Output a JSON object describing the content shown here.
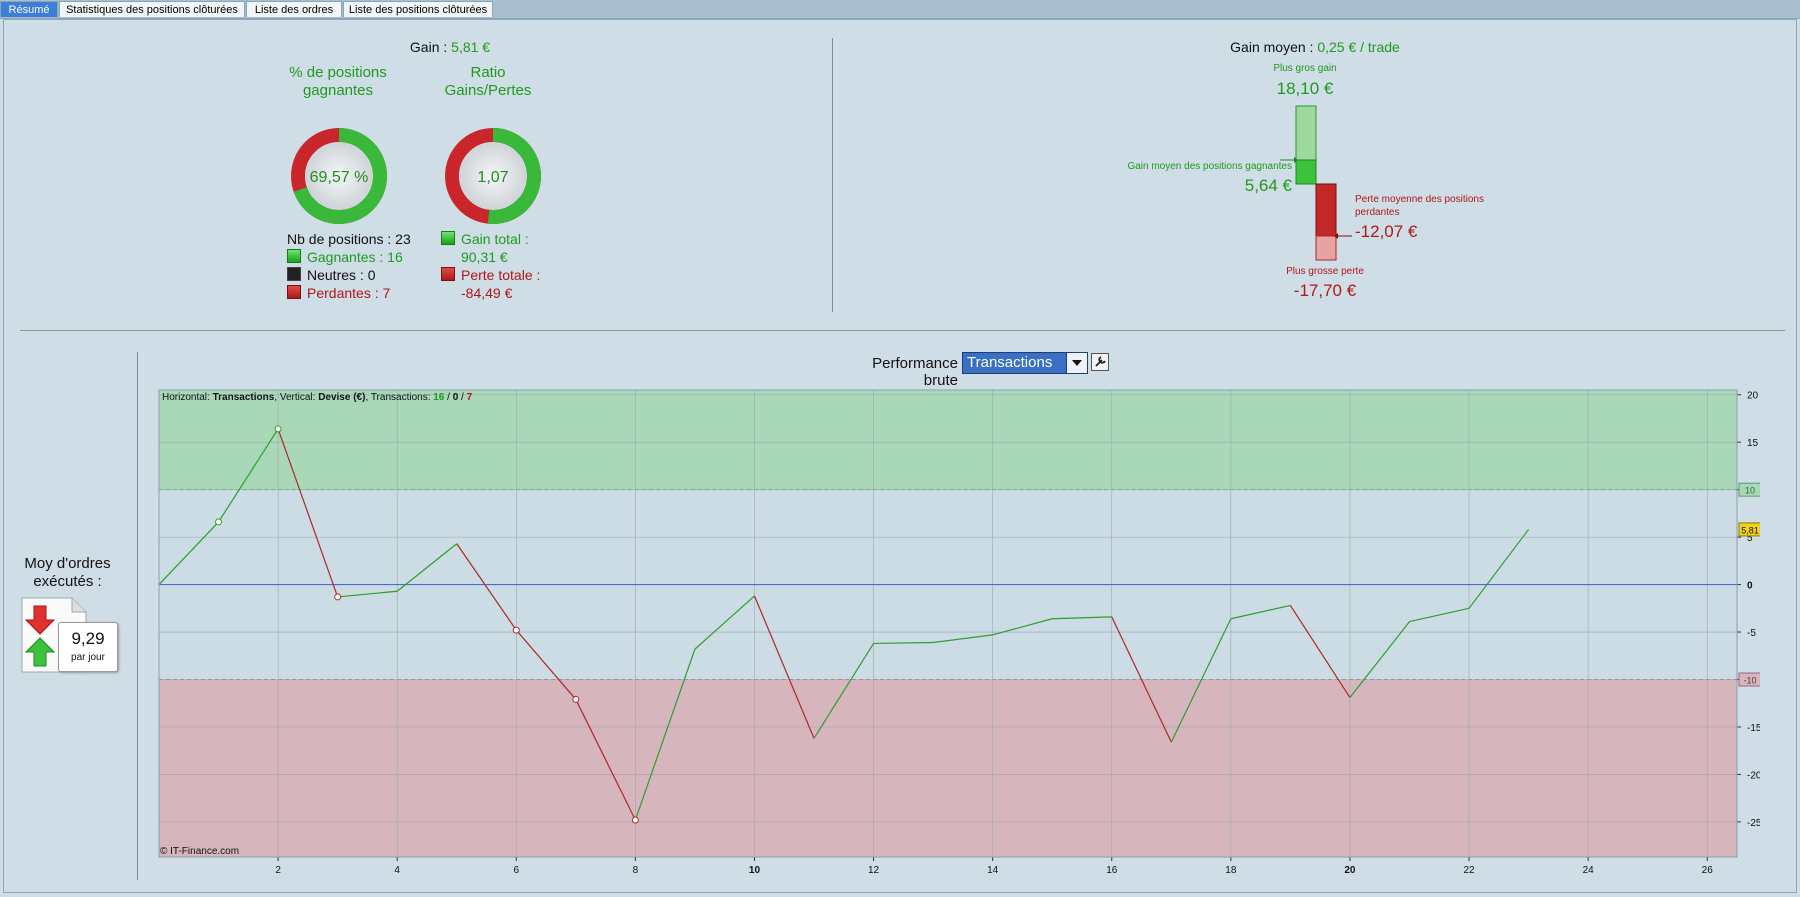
{
  "tabs": [
    {
      "label": "Résumé",
      "active": true
    },
    {
      "label": "Statistiques des positions clôturées"
    },
    {
      "label": "Liste des ordres"
    },
    {
      "label": "Liste des positions clôturées"
    }
  ],
  "summary": {
    "gain_label": "Gain :",
    "gain_value": "5,81 €",
    "pct_title": "% de positions gagnantes",
    "pct_value": "69,57 %",
    "pct_fraction": 0.6957,
    "ratio_title": "Ratio Gains/Pertes",
    "ratio_value": "1,07",
    "ratio_fraction": 0.5166,
    "nb_positions": "Nb de positions : 23",
    "gagnantes": "Gagnantes : 16",
    "neutres": "Neutres : 0",
    "perdantes": "Perdantes : 7",
    "gain_total_label": "Gain total :",
    "gain_total_value": "90,31 €",
    "perte_totale_label": "Perte totale :",
    "perte_totale_value": "-84,49 €"
  },
  "gain_moyen": {
    "label": "Gain moyen :",
    "value": "0,25 € / trade",
    "plus_gros_gain_label": "Plus gros gain",
    "plus_gros_gain_value": "18,10 €",
    "gain_moyen_gagnantes_label": "Gain moyen des positions gagnantes",
    "gain_moyen_gagnantes_value": "5,64 €",
    "perte_moyenne_label_1": "Perte moyenne des positions",
    "perte_moyenne_label_2": "perdantes",
    "perte_moyenne_value": "-12,07 €",
    "plus_grosse_perte_label": "Plus grosse perte",
    "plus_grosse_perte_value": "-17,70 €"
  },
  "orders": {
    "title_1": "Moy d'ordres",
    "title_2": "exécutés :",
    "value": "9,29",
    "unit": "par jour"
  },
  "perf": {
    "label": "Performance brute",
    "select_value": "Transactions"
  },
  "chart_data": {
    "type": "line",
    "info_prefix": "Horizontal: ",
    "info_h": "Transactions",
    "info_mid": ", Vertical: ",
    "info_v": "Devise (€)",
    "info_tx": ", Transactions: ",
    "info_win": "16",
    "info_neutral": "0",
    "info_loss": "7",
    "copyright": "© IT-Finance.com",
    "x_ticks": [
      2,
      4,
      6,
      8,
      10,
      12,
      14,
      16,
      18,
      20,
      22,
      24,
      26
    ],
    "x_bold": [
      10,
      20
    ],
    "y_ticks": [
      20,
      15,
      10,
      5,
      0,
      -5,
      -10,
      -15,
      -20,
      -25
    ],
    "xlim": [
      0,
      26.5
    ],
    "ylim": [
      -28.7,
      20.5
    ],
    "green_zone": [
      10,
      20.5
    ],
    "red_zone": [
      -28.7,
      -10
    ],
    "zone_tag_high": "10",
    "zone_tag_low": "-10",
    "last_value_tag": "5,81",
    "x": [
      0,
      1,
      2,
      3,
      4,
      5,
      6,
      7,
      8,
      9,
      10,
      11,
      12,
      13,
      14,
      15,
      16,
      17,
      18,
      19,
      20,
      21,
      22,
      23
    ],
    "y": [
      0,
      6.6,
      16.4,
      -1.3,
      -0.7,
      4.3,
      -4.8,
      -12.1,
      -24.8,
      -6.8,
      -1.2,
      -16.2,
      -6.2,
      -6.1,
      -5.3,
      -3.6,
      -3.4,
      -16.6,
      -3.6,
      -2.2,
      -11.9,
      -3.9,
      -2.5,
      5.81
    ],
    "colors": {
      "up": "#2e9e2e",
      "down": "#b02828",
      "zero": "#4f68d8",
      "green_zone": "#a8d8b8",
      "red_zone": "#d6b5bd"
    }
  }
}
